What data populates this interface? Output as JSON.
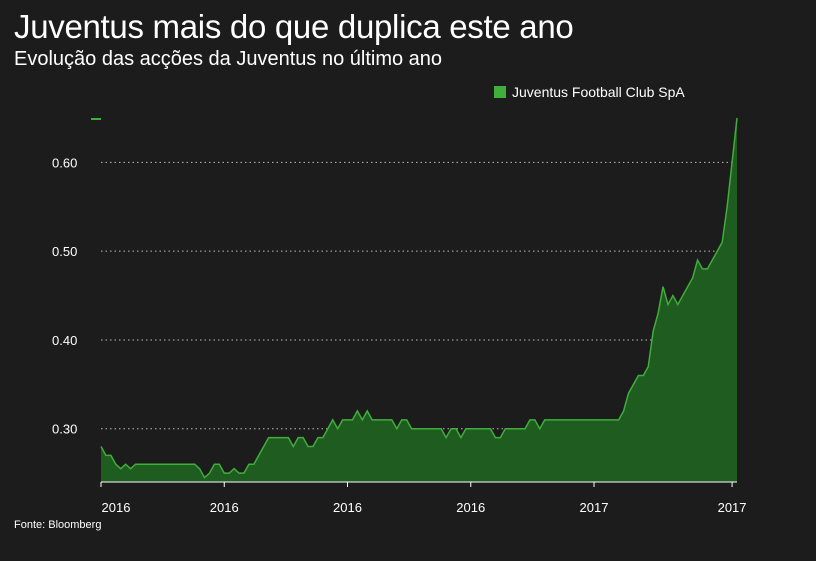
{
  "title": "Juventus mais do que duplica este ano",
  "subtitle": "Evolução das acções da Juventus no último ano",
  "source": "Fonte: Bloomberg",
  "colors": {
    "background": "#1c1c1c",
    "series_line": "#3fae3a",
    "series_fill": "#1f5c1f",
    "grid": "#bdbdbd",
    "text": "#ffffff"
  },
  "chart_data": {
    "type": "area",
    "title": "Juventus mais do que duplica este ano",
    "subtitle": "Evolução das acções da Juventus no último ano",
    "xlabel": "",
    "ylabel": "",
    "ylim": [
      0.24,
      0.65
    ],
    "yticks": [
      0.3,
      0.4,
      0.5,
      0.6
    ],
    "ytick_labels": [
      "0.30",
      "0.40",
      "0.50",
      "0.60"
    ],
    "xtick_labels": [
      "2016",
      "2016",
      "2016",
      "2016",
      "2017",
      "2017"
    ],
    "xtick_index": [
      0,
      25,
      50,
      75,
      100,
      128
    ],
    "grid": true,
    "legend": "top-right",
    "series": [
      {
        "name": "Juventus Football Club SpA",
        "values": [
          0.28,
          0.27,
          0.27,
          0.26,
          0.255,
          0.26,
          0.255,
          0.26,
          0.26,
          0.26,
          0.26,
          0.26,
          0.26,
          0.26,
          0.26,
          0.26,
          0.26,
          0.26,
          0.26,
          0.26,
          0.255,
          0.245,
          0.25,
          0.26,
          0.26,
          0.25,
          0.25,
          0.255,
          0.25,
          0.25,
          0.26,
          0.26,
          0.27,
          0.28,
          0.29,
          0.29,
          0.29,
          0.29,
          0.29,
          0.28,
          0.29,
          0.29,
          0.28,
          0.28,
          0.29,
          0.29,
          0.3,
          0.31,
          0.3,
          0.31,
          0.31,
          0.31,
          0.32,
          0.31,
          0.32,
          0.31,
          0.31,
          0.31,
          0.31,
          0.31,
          0.3,
          0.31,
          0.31,
          0.3,
          0.3,
          0.3,
          0.3,
          0.3,
          0.3,
          0.3,
          0.29,
          0.3,
          0.3,
          0.29,
          0.3,
          0.3,
          0.3,
          0.3,
          0.3,
          0.3,
          0.29,
          0.29,
          0.3,
          0.3,
          0.3,
          0.3,
          0.3,
          0.31,
          0.31,
          0.3,
          0.31,
          0.31,
          0.31,
          0.31,
          0.31,
          0.31,
          0.31,
          0.31,
          0.31,
          0.31,
          0.31,
          0.31,
          0.31,
          0.31,
          0.31,
          0.31,
          0.32,
          0.34,
          0.35,
          0.36,
          0.36,
          0.37,
          0.41,
          0.43,
          0.46,
          0.44,
          0.45,
          0.44,
          0.45,
          0.46,
          0.47,
          0.49,
          0.48,
          0.48,
          0.49,
          0.5,
          0.51,
          0.55,
          0.6,
          0.65
        ]
      }
    ]
  },
  "legend": {
    "label": "Juventus Football Club SpA"
  }
}
